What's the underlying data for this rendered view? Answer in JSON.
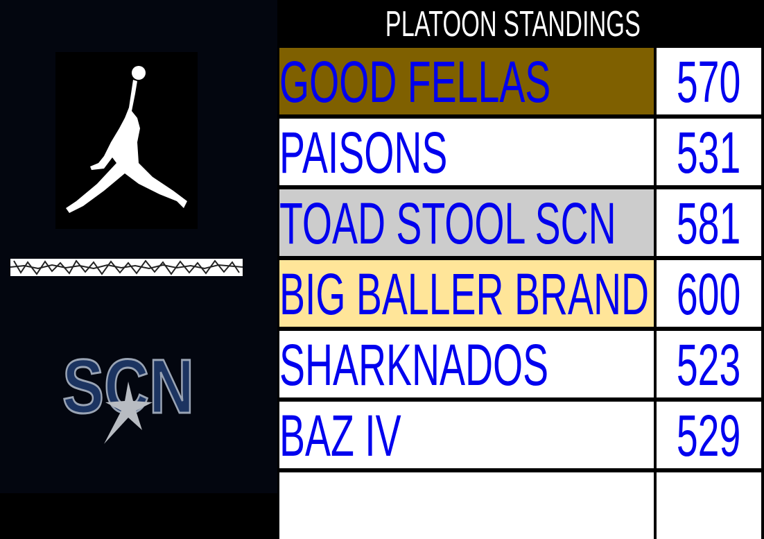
{
  "title": "PLATOON STANDINGS",
  "logos": [
    "jumpman-logo",
    "elephant-print-strip",
    "SCN"
  ],
  "colors": {
    "text": "#0000ee",
    "first": "#7f6000",
    "third": "#cccccc",
    "fourth": "#ffe599",
    "default": "#ffffff"
  },
  "rows": [
    {
      "name": "GOOD FELLAS",
      "score": "570",
      "bg": "#7f6000"
    },
    {
      "name": "PAISONS",
      "score": "531",
      "bg": "#ffffff"
    },
    {
      "name": "TOAD STOOL SCN",
      "score": "581",
      "bg": "#cccccc"
    },
    {
      "name": "BIG BALLER BRAND",
      "score": "600",
      "bg": "#ffe599"
    },
    {
      "name": "SHARKNADOS",
      "score": "523",
      "bg": "#ffffff"
    },
    {
      "name": "BAZ IV",
      "score": "529",
      "bg": "#ffffff"
    },
    {
      "name": "",
      "score": "",
      "bg": "#ffffff"
    }
  ]
}
